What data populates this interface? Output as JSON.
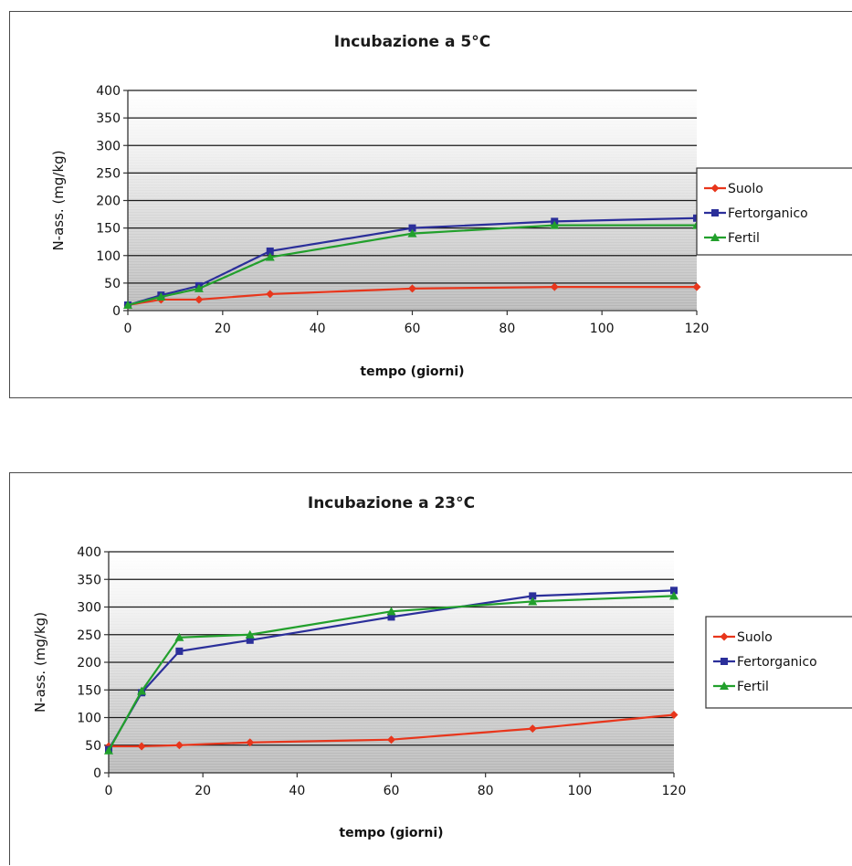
{
  "chart_data": [
    {
      "type": "line",
      "title": "Incubazione a 5°C",
      "xlabel": "tempo (giorni)",
      "ylabel": "N-ass. (mg/kg)",
      "xlim": [
        0,
        120
      ],
      "ylim": [
        0,
        400
      ],
      "xticks": [
        0,
        20,
        40,
        60,
        80,
        100,
        120
      ],
      "yticks": [
        0,
        50,
        100,
        150,
        200,
        250,
        300,
        350,
        400
      ],
      "grid": true,
      "legend": "right",
      "x": [
        0,
        7,
        15,
        30,
        60,
        90,
        120
      ],
      "series": [
        {
          "name": "Suolo",
          "color": "#e8361c",
          "marker": "diamond",
          "values": [
            10,
            20,
            20,
            30,
            40,
            43,
            43
          ]
        },
        {
          "name": "Fertorganico",
          "color": "#2b2f9a",
          "marker": "square",
          "values": [
            10,
            28,
            45,
            108,
            150,
            162,
            168
          ]
        },
        {
          "name": "Fertil",
          "color": "#22a02c",
          "marker": "triangle",
          "values": [
            10,
            25,
            40,
            97,
            140,
            155,
            155
          ]
        }
      ]
    },
    {
      "type": "line",
      "title": "Incubazione a 23°C",
      "xlabel": "tempo (giorni)",
      "ylabel": "N-ass. (mg/kg)",
      "xlim": [
        0,
        120
      ],
      "ylim": [
        0,
        400
      ],
      "xticks": [
        0,
        20,
        40,
        60,
        80,
        100,
        120
      ],
      "yticks": [
        0,
        50,
        100,
        150,
        200,
        250,
        300,
        350,
        400
      ],
      "grid": true,
      "legend": "right",
      "x": [
        0,
        7,
        15,
        30,
        60,
        90,
        120
      ],
      "series": [
        {
          "name": "Suolo",
          "color": "#e8361c",
          "marker": "diamond",
          "values": [
            48,
            48,
            50,
            55,
            60,
            80,
            105
          ]
        },
        {
          "name": "Fertorganico",
          "color": "#2b2f9a",
          "marker": "square",
          "values": [
            42,
            145,
            220,
            240,
            282,
            320,
            330
          ]
        },
        {
          "name": "Fertil",
          "color": "#22a02c",
          "marker": "triangle",
          "values": [
            40,
            148,
            245,
            250,
            292,
            310,
            320
          ]
        }
      ]
    }
  ]
}
